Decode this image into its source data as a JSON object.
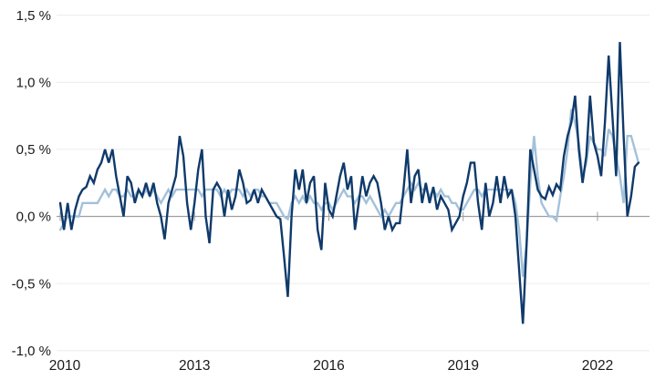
{
  "chart_data": {
    "type": "line",
    "title": "",
    "xlabel": "",
    "ylabel": "",
    "legend": "none",
    "grid": "horizontal",
    "zero_axis_emphasized": true,
    "x_start": "2010-01",
    "x_frequency": "monthly",
    "x_tick_labels": [
      "2010",
      "2013",
      "2016",
      "2019",
      "2022"
    ],
    "x_tick_month_indices": [
      0,
      36,
      72,
      108,
      144
    ],
    "y_tick_labels": [
      "1,5 %",
      "1,0 %",
      "0,5 %",
      "0,0 %",
      "-0,5 %",
      "-1,0 %"
    ],
    "y_tick_values": [
      1.5,
      1.0,
      0.5,
      0.0,
      -0.5,
      -1.0
    ],
    "ylim": [
      -1.0,
      1.5
    ],
    "colors": {
      "series_dark": "#0F3A6B",
      "series_light": "#A3C1DA",
      "zero_line": "#9E9E9E",
      "grid_line": "#ECECEC",
      "tick_mark": "#9E9E9E",
      "label_text": "#1a1a1a"
    },
    "series": [
      {
        "name": "dark-blue-line",
        "color": "#0F3A6B",
        "values": [
          0.1,
          -0.1,
          0.1,
          -0.1,
          0.05,
          0.15,
          0.2,
          0.22,
          0.3,
          0.25,
          0.35,
          0.4,
          0.5,
          0.4,
          0.5,
          0.3,
          0.15,
          0.0,
          0.3,
          0.25,
          0.1,
          0.2,
          0.15,
          0.25,
          0.15,
          0.25,
          0.1,
          0.0,
          -0.17,
          0.1,
          0.2,
          0.3,
          0.6,
          0.45,
          0.1,
          -0.1,
          0.1,
          0.35,
          0.5,
          0.0,
          -0.2,
          0.2,
          0.25,
          0.2,
          0.0,
          0.2,
          0.05,
          0.15,
          0.35,
          0.25,
          0.1,
          0.12,
          0.2,
          0.1,
          0.2,
          0.15,
          0.1,
          0.05,
          0.0,
          -0.02,
          -0.3,
          -0.6,
          0.0,
          0.35,
          0.2,
          0.35,
          0.1,
          0.25,
          0.3,
          -0.1,
          -0.25,
          0.25,
          0.05,
          0.0,
          0.15,
          0.3,
          0.4,
          0.2,
          0.3,
          -0.1,
          0.1,
          0.3,
          0.15,
          0.25,
          0.3,
          0.25,
          0.1,
          -0.1,
          0.0,
          -0.1,
          -0.05,
          -0.05,
          0.2,
          0.5,
          0.1,
          0.3,
          0.35,
          0.1,
          0.25,
          0.1,
          0.22,
          0.05,
          0.15,
          0.1,
          0.05,
          -0.1,
          -0.05,
          0.0,
          0.15,
          0.25,
          0.4,
          0.4,
          0.1,
          -0.1,
          0.25,
          0.0,
          0.1,
          0.3,
          0.1,
          0.3,
          0.15,
          0.2,
          0.0,
          -0.4,
          -0.8,
          -0.2,
          0.5,
          0.35,
          0.2,
          0.15,
          0.13,
          0.22,
          0.16,
          0.24,
          0.2,
          0.45,
          0.6,
          0.7,
          0.9,
          0.5,
          0.25,
          0.45,
          0.9,
          0.55,
          0.45,
          0.3,
          0.7,
          1.2,
          0.75,
          0.3,
          1.3,
          0.6,
          0.0,
          0.15,
          0.37,
          0.4
        ]
      },
      {
        "name": "light-blue-line",
        "color": "#A3C1DA",
        "values": [
          -0.1,
          -0.05,
          0.0,
          0.0,
          0.0,
          0.0,
          0.1,
          0.1,
          0.1,
          0.1,
          0.1,
          0.15,
          0.2,
          0.15,
          0.2,
          0.2,
          0.15,
          0.15,
          0.2,
          0.15,
          0.15,
          0.2,
          0.15,
          0.2,
          0.15,
          0.2,
          0.15,
          0.1,
          0.15,
          0.2,
          0.15,
          0.2,
          0.2,
          0.2,
          0.2,
          0.2,
          0.2,
          0.2,
          0.15,
          0.2,
          0.2,
          0.2,
          0.2,
          0.15,
          0.2,
          0.15,
          0.2,
          0.2,
          0.2,
          0.15,
          0.2,
          0.15,
          0.2,
          0.2,
          0.15,
          0.15,
          0.1,
          0.1,
          0.1,
          0.05,
          0.0,
          -0.02,
          0.1,
          0.15,
          0.1,
          0.15,
          0.1,
          0.15,
          0.1,
          0.1,
          0.05,
          0.1,
          0.1,
          0.05,
          0.1,
          0.15,
          0.2,
          0.15,
          0.15,
          0.1,
          0.15,
          0.15,
          0.1,
          0.15,
          0.1,
          0.05,
          0.0,
          0.05,
          0.0,
          0.05,
          0.1,
          0.1,
          0.15,
          0.2,
          0.25,
          0.2,
          0.25,
          0.2,
          0.2,
          0.15,
          0.2,
          0.15,
          0.2,
          0.15,
          0.15,
          0.1,
          0.1,
          0.05,
          0.05,
          0.1,
          0.15,
          0.2,
          0.2,
          0.15,
          0.2,
          0.2,
          0.2,
          0.2,
          0.2,
          0.2,
          0.2,
          0.2,
          0.1,
          -0.1,
          -0.45,
          -0.2,
          0.25,
          0.6,
          0.3,
          0.1,
          0.05,
          0.0,
          0.0,
          -0.03,
          0.15,
          0.3,
          0.5,
          0.8,
          0.7,
          0.55,
          0.3,
          0.4,
          0.6,
          0.55,
          0.5,
          0.5,
          0.45,
          0.65,
          0.6,
          0.45,
          0.3,
          0.1,
          0.6,
          0.6,
          0.5,
          0.4
        ]
      }
    ]
  }
}
